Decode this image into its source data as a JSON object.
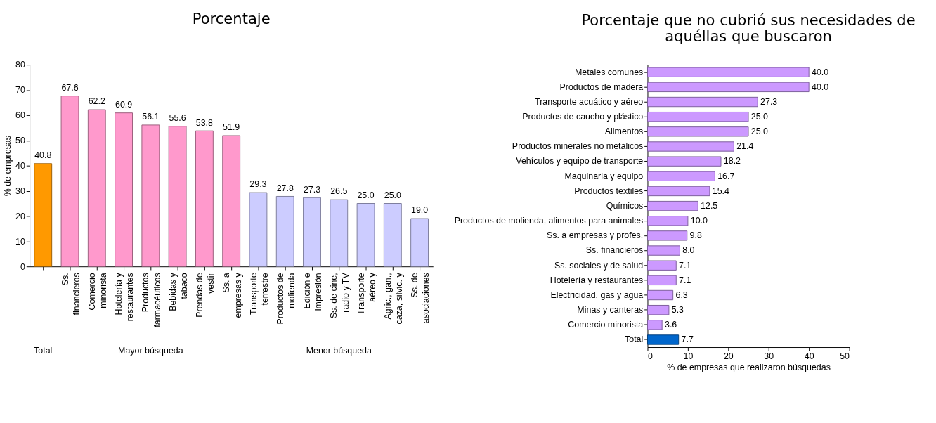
{
  "chart_data": [
    {
      "type": "bar",
      "title": "Porcentaje",
      "ylabel": "% de empresas",
      "categories": [
        null,
        "Ss.\nfinancieros",
        "Comercio\nminorista",
        "Hotelería y\nrestaurantes",
        "Productos\nfarmacéuticos",
        "Bebidas y\ntabaco",
        "Prendas de\nvestir",
        "Ss. a\nempresas y",
        "Transporte\nterrestre",
        "Productos de\nmolienda",
        "Edición e\nimpresión",
        "Ss. de cine,\nradio y TV",
        "Transporte\naéreo y",
        "Agric., gan.,\ncaza, silvic. y",
        "Ss. de\nasociaciones"
      ],
      "values": [
        40.8,
        67.6,
        62.2,
        60.9,
        56.1,
        55.6,
        53.8,
        51.9,
        29.3,
        27.8,
        27.3,
        26.5,
        25.0,
        25.0,
        19.0
      ],
      "value_labels": [
        "40.8",
        "67.6",
        "62.2",
        "60.9",
        "56.1",
        "55.6",
        "53.8",
        "51.9",
        "29.3",
        "27.8",
        "27.3",
        "26.5",
        "25.0",
        "25.0",
        "19.0"
      ],
      "colors": [
        "#ff9900",
        "#ff99cc",
        "#ff99cc",
        "#ff99cc",
        "#ff99cc",
        "#ff99cc",
        "#ff99cc",
        "#ff99cc",
        "#ccccff",
        "#ccccff",
        "#ccccff",
        "#ccccff",
        "#ccccff",
        "#ccccff",
        "#ccccff"
      ],
      "ylim": [
        0,
        80
      ],
      "yticks": [
        0,
        10,
        20,
        30,
        40,
        50,
        60,
        70,
        80
      ],
      "annotations": [
        "Total",
        "Mayor búsqueda",
        "Menor búsqueda"
      ]
    },
    {
      "type": "bar",
      "orientation": "horizontal",
      "title": "Porcentaje que no cubrió sus necesidades de aquéllas que buscaron",
      "xlabel": "% de empresas que realizaron búsquedas",
      "categories": [
        "Metales comunes",
        "Productos de madera",
        "Transporte acuático y aéreo",
        "Productos de caucho y plástico",
        "Alimentos",
        "Productos minerales no metálicos",
        "Vehículos y equipo de transporte",
        "Maquinaria y equipo",
        "Productos textiles",
        "Químicos",
        "Productos de molienda, alimentos para animales",
        "Ss. a empresas y profes.",
        "Ss. financieros",
        "Ss. sociales y de salud",
        "Hotelería y restaurantes",
        "Electricidad, gas y agua",
        "Minas y canteras",
        "Comercio minorista",
        "Total"
      ],
      "values": [
        40.0,
        40.0,
        27.3,
        25.0,
        25.0,
        21.4,
        18.2,
        16.7,
        15.4,
        12.5,
        10.0,
        9.8,
        8.0,
        7.1,
        7.1,
        6.3,
        5.3,
        3.6,
        7.7
      ],
      "value_labels": [
        "40.0",
        "40.0",
        "27.3",
        "25.0",
        "25.0",
        "21.4",
        "18.2",
        "16.7",
        "15.4",
        "12.5",
        "10.0",
        "9.8",
        "8.0",
        "7.1",
        "7.1",
        "6.3",
        "5.3",
        "3.6",
        "7.7"
      ],
      "colors": [
        "#cc99ff",
        "#cc99ff",
        "#cc99ff",
        "#cc99ff",
        "#cc99ff",
        "#cc99ff",
        "#cc99ff",
        "#cc99ff",
        "#cc99ff",
        "#cc99ff",
        "#cc99ff",
        "#cc99ff",
        "#cc99ff",
        "#cc99ff",
        "#cc99ff",
        "#cc99ff",
        "#cc99ff",
        "#cc99ff",
        "#0066cc"
      ],
      "xlim": [
        0,
        50
      ],
      "xticks": [
        0,
        10,
        20,
        30,
        40,
        50
      ]
    }
  ]
}
